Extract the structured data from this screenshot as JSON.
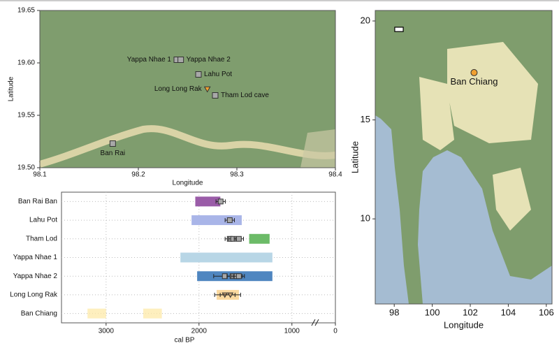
{
  "chart_data": [
    {
      "type": "map-points",
      "xlabel": "Longitude",
      "ylabel": "Latitude",
      "xlim": [
        98.1,
        98.4
      ],
      "ylim": [
        19.5,
        19.65
      ],
      "xticks": [
        98.1,
        98.2,
        98.3,
        98.4
      ],
      "yticks": [
        {
          "value": 19.5,
          "label": "19.50"
        },
        {
          "value": 19.55,
          "label": "19.55"
        },
        {
          "value": 19.6,
          "label": "19.60"
        },
        {
          "value": 19.65,
          "label": "19.65"
        }
      ],
      "points": [
        {
          "name": "Yappa Nhae 1",
          "x": 98.239,
          "y": 19.603,
          "marker": "square",
          "color": "#a8a8a8",
          "label_side": "left"
        },
        {
          "name": "Yappa Nhae 2",
          "x": 98.243,
          "y": 19.603,
          "marker": "square",
          "color": "#a8a8a8",
          "label_side": "right"
        },
        {
          "name": "Lahu Pot",
          "x": 98.261,
          "y": 19.589,
          "marker": "square",
          "color": "#a8a8a8",
          "label_side": "right"
        },
        {
          "name": "Long Long Rak",
          "x": 98.27,
          "y": 19.575,
          "marker": "triangle",
          "color": "#f0a030",
          "label_side": "left"
        },
        {
          "name": "Tham Lod cave",
          "x": 98.278,
          "y": 19.569,
          "marker": "square",
          "color": "#a8a8a8",
          "label_side": "right"
        },
        {
          "name": "Ban Rai",
          "x": 98.174,
          "y": 19.523,
          "marker": "square",
          "color": "#a8a8a8",
          "label_side": "below"
        }
      ]
    },
    {
      "type": "map-points",
      "xlabel": "Longitude",
      "ylabel": "Latitude",
      "xlim": [
        97,
        106.3
      ],
      "ylim": [
        5.7,
        20.53
      ],
      "xticks": [
        98,
        100,
        102,
        104,
        106
      ],
      "yticks": [
        10,
        15,
        20
      ],
      "points": [
        {
          "name": "Ban Chiang",
          "x": 102.2,
          "y": 17.39,
          "marker": "circle",
          "color": "#f0a030",
          "label_side": "below"
        }
      ]
    },
    {
      "type": "range",
      "xlabel": "cal BP",
      "xlim": [
        3480,
        0
      ],
      "axis_break": 750,
      "xticks": [
        3000,
        2000,
        1000,
        0
      ],
      "rows": [
        {
          "name": "Ban Rai Ban",
          "color": "#9a5ca8",
          "ranges": [
            [
              2040,
              1770
            ]
          ],
          "marker": "square",
          "dates": [
            1767
          ],
          "errors": [
            50
          ]
        },
        {
          "name": "Lahu Pot",
          "color": "#a9b5e8",
          "ranges": [
            [
              2080,
              1540
            ]
          ],
          "marker": "square",
          "dates": [
            1669
          ],
          "errors": [
            50
          ]
        },
        {
          "name": "Tham Lod",
          "color": "#6cbb68",
          "ranges": [
            [
              1460,
              1240
            ]
          ],
          "marker": "square",
          "dates": [
            1669,
            1632,
            1571
          ],
          "errors": [
            50,
            50,
            50
          ]
        },
        {
          "name": "Yappa Nhae 1",
          "color": "#b8d6e6",
          "ranges": [
            [
              2200,
              1210
            ]
          ],
          "marker": "square",
          "dates": [],
          "errors": []
        },
        {
          "name": "Yappa Nhae 2",
          "color": "#4f86c0",
          "ranges": [
            [
              2020,
              1210
            ]
          ],
          "marker": "square",
          "dates": [
            1722,
            1639,
            1594,
            1571
          ],
          "errors": [
            120,
            60,
            60,
            60
          ]
        },
        {
          "name": "Long Long Rak",
          "color": "#fbd9a0",
          "ranges": [
            [
              1810,
              1570
            ]
          ],
          "marker": "triangle",
          "dates": [
            1722,
            1662
          ],
          "errors": [
            110,
            110
          ]
        },
        {
          "name": "Ban Chiang",
          "color": "#fdeaa8",
          "ranges": [
            [
              3200,
              3000
            ],
            [
              2600,
              2400
            ]
          ],
          "marker": "square",
          "dates": [],
          "errors": []
        }
      ]
    }
  ]
}
